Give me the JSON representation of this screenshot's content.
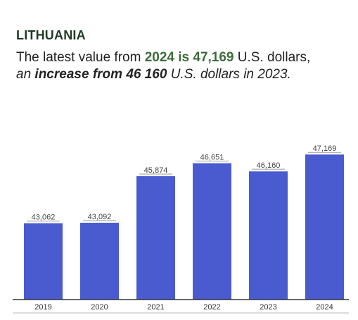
{
  "header": {
    "title": "LITHUANIA",
    "line1_pre": "The latest value from ",
    "line1_hl": "2024 is 47,169",
    "line1_post": " U.S. dollars,",
    "line2_pre": "an ",
    "line2_hl": "increase from 46 160",
    "line2_post": " U.S. dollars in 2023."
  },
  "colors": {
    "bar": "#4a5bd0",
    "axis": "#333333",
    "separator": "#bbbbbb"
  },
  "chart_data": {
    "type": "bar",
    "title": "",
    "xlabel": "",
    "ylabel": "",
    "categories": [
      "2019",
      "2020",
      "2021",
      "2022",
      "2023",
      "2024"
    ],
    "values": [
      43062,
      43092,
      45874,
      46651,
      46160,
      47169
    ],
    "value_labels": [
      "43,062",
      "43,092",
      "45,874",
      "46,651",
      "46,160",
      "47,169"
    ],
    "ylim": [
      38500,
      47600
    ],
    "grid": false,
    "legend": "none"
  }
}
